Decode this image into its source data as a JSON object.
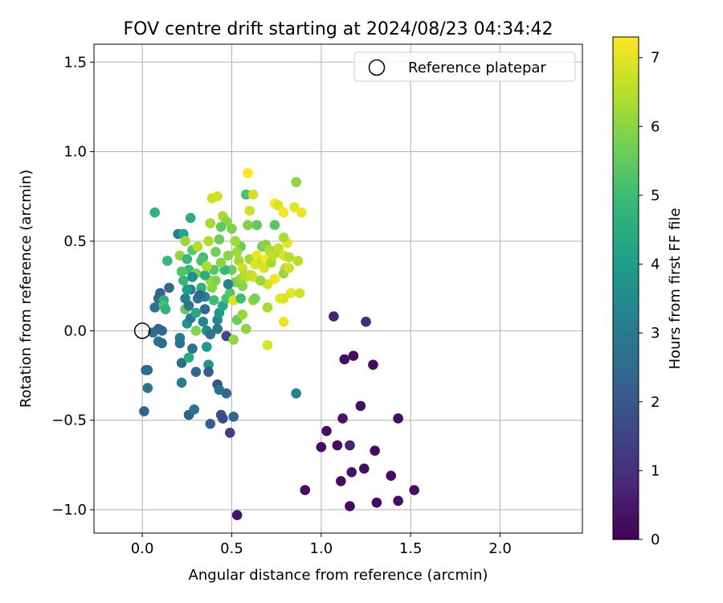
{
  "chart_data": {
    "type": "scatter",
    "title": "FOV centre drift starting at 2024/08/23 04:34:42",
    "xlabel": "Angular distance from reference (arcmin)",
    "ylabel": "Rotation from reference (arcmin)",
    "xlim": [
      -0.27,
      2.46
    ],
    "ylim": [
      -1.13,
      1.6
    ],
    "xticks": [
      "0.0",
      "0.5",
      "1.0",
      "1.5",
      "2.0"
    ],
    "xtick_values": [
      0,
      0.5,
      1.0,
      1.5,
      2.0
    ],
    "yticks": [
      "−1.0",
      "−0.5",
      "0.0",
      "0.5",
      "1.0",
      "1.5"
    ],
    "ytick_values": [
      -1.0,
      -0.5,
      0.0,
      0.5,
      1.0,
      1.5
    ],
    "grid": true,
    "legend": {
      "placement": "top-right",
      "entries": [
        "Reference platepar"
      ]
    },
    "reference_point": {
      "x": 0.0,
      "y": 0.0
    },
    "colorbar": {
      "label": "Hours from first FF file",
      "min": 0,
      "max": 7.3,
      "ticks": [
        "0",
        "1",
        "2",
        "3",
        "4",
        "5",
        "6",
        "7"
      ],
      "tick_values": [
        0,
        1,
        2,
        3,
        4,
        5,
        6,
        7
      ],
      "colormap": [
        "#440154",
        "#482878",
        "#3e4989",
        "#31688e",
        "#26828e",
        "#1f9e89",
        "#35b779",
        "#6ece58",
        "#b5de2b",
        "#fde725"
      ]
    },
    "series": [
      {
        "values_format": "[x, y, hours]",
        "points": [
          [
            0.53,
            -1.03,
            0.4
          ],
          [
            0.91,
            -0.89,
            0.3
          ],
          [
            1.16,
            -0.98,
            0.2
          ],
          [
            1.11,
            -0.84,
            0.3
          ],
          [
            1.17,
            -0.79,
            0.4
          ],
          [
            1.24,
            -0.77,
            0.3
          ],
          [
            1.31,
            -0.96,
            0.2
          ],
          [
            1.43,
            -0.95,
            0.3
          ],
          [
            1.52,
            -0.89,
            0.3
          ],
          [
            1.39,
            -0.81,
            0.2
          ],
          [
            1.0,
            -0.65,
            0.2
          ],
          [
            1.03,
            -0.56,
            0.3
          ],
          [
            1.09,
            -0.64,
            0.2
          ],
          [
            1.16,
            -0.64,
            0.7
          ],
          [
            1.12,
            -0.49,
            0.4
          ],
          [
            1.22,
            -0.42,
            0.3
          ],
          [
            1.3,
            -0.67,
            0.2
          ],
          [
            1.43,
            -0.49,
            0.2
          ],
          [
            1.13,
            -0.16,
            0.2
          ],
          [
            1.18,
            -0.14,
            0.3
          ],
          [
            1.29,
            -0.19,
            0.2
          ],
          [
            1.07,
            0.08,
            0.7
          ],
          [
            1.25,
            0.05,
            0.9
          ],
          [
            0.86,
            -0.35,
            3.2
          ],
          [
            0.01,
            -0.45,
            2.3
          ],
          [
            0.03,
            -0.32,
            2.8
          ],
          [
            0.02,
            -0.22,
            2.5
          ],
          [
            0.03,
            -0.22,
            2.6
          ],
          [
            0.06,
            -0.01,
            2.7
          ],
          [
            0.09,
            0.01,
            2.5
          ],
          [
            0.11,
            0.0,
            2.4
          ],
          [
            0.09,
            -0.06,
            2.8
          ],
          [
            0.11,
            -0.07,
            2.6
          ],
          [
            0.07,
            0.13,
            2.7
          ],
          [
            0.09,
            0.18,
            2.5
          ],
          [
            0.1,
            0.21,
            2.3
          ],
          [
            0.15,
            0.24,
            2.4
          ],
          [
            0.12,
            0.17,
            4.6
          ],
          [
            0.12,
            0.14,
            5.2
          ],
          [
            0.13,
            0.12,
            4.8
          ],
          [
            0.14,
            0.39,
            4.9
          ],
          [
            0.07,
            0.66,
            4.7
          ],
          [
            0.2,
            0.54,
            3.1
          ],
          [
            0.23,
            0.54,
            4.3
          ],
          [
            0.27,
            0.63,
            4.5
          ],
          [
            0.21,
            -0.04,
            3.1
          ],
          [
            0.21,
            -0.07,
            2.7
          ],
          [
            0.22,
            -0.18,
            2.6
          ],
          [
            0.22,
            -0.29,
            3.1
          ],
          [
            0.26,
            -0.47,
            2.2
          ],
          [
            0.29,
            -0.44,
            2.8
          ],
          [
            0.3,
            -0.23,
            2.4
          ],
          [
            0.28,
            -0.1,
            2.7
          ],
          [
            0.26,
            -0.15,
            4.5
          ],
          [
            0.25,
            0.04,
            3.8
          ],
          [
            0.3,
            0.0,
            5.9
          ],
          [
            0.24,
            0.12,
            5.5
          ],
          [
            0.24,
            0.18,
            3.1
          ],
          [
            0.27,
            0.23,
            3.1
          ],
          [
            0.31,
            0.18,
            2.9
          ],
          [
            0.26,
            0.34,
            4.9
          ],
          [
            0.28,
            0.45,
            5.4
          ],
          [
            0.34,
            0.41,
            5.0
          ],
          [
            0.3,
            0.32,
            5.8
          ],
          [
            0.33,
            0.24,
            4.6
          ],
          [
            0.35,
            0.19,
            3.2
          ],
          [
            0.35,
            0.12,
            2.5
          ],
          [
            0.36,
            0.0,
            3.6
          ],
          [
            0.38,
            -0.02,
            2.8
          ],
          [
            0.36,
            -0.09,
            4.0
          ],
          [
            0.37,
            -0.19,
            3.8
          ],
          [
            0.37,
            -0.23,
            2.1
          ],
          [
            0.38,
            -0.52,
            2.2
          ],
          [
            0.42,
            -0.3,
            1.9
          ],
          [
            0.43,
            -0.33,
            2.8
          ],
          [
            0.44,
            -0.47,
            1.8
          ],
          [
            0.45,
            -0.49,
            1.6
          ],
          [
            0.47,
            -0.35,
            2.6
          ],
          [
            0.49,
            -0.57,
            1.4
          ],
          [
            0.51,
            -0.48,
            2.4
          ],
          [
            0.47,
            -0.03,
            1.6
          ],
          [
            0.42,
            0.01,
            2.9
          ],
          [
            0.42,
            0.06,
            3.4
          ],
          [
            0.43,
            0.1,
            3.9
          ],
          [
            0.45,
            0.14,
            4.3
          ],
          [
            0.47,
            0.18,
            5.1
          ],
          [
            0.39,
            0.24,
            6.0
          ],
          [
            0.38,
            0.28,
            6.2
          ],
          [
            0.41,
            0.28,
            5.9
          ],
          [
            0.4,
            0.17,
            5.0
          ],
          [
            0.4,
            0.34,
            5.4
          ],
          [
            0.41,
            0.44,
            5.7
          ],
          [
            0.43,
            0.51,
            5.6
          ],
          [
            0.38,
            0.6,
            6.3
          ],
          [
            0.39,
            0.74,
            6.7
          ],
          [
            0.42,
            0.75,
            6.8
          ],
          [
            0.45,
            0.64,
            6.4
          ],
          [
            0.47,
            0.61,
            6.0
          ],
          [
            0.44,
            0.58,
            5.5
          ],
          [
            0.48,
            0.42,
            6.0
          ],
          [
            0.5,
            0.34,
            5.6
          ],
          [
            0.52,
            0.27,
            5.8
          ],
          [
            0.49,
            0.21,
            5.3
          ],
          [
            0.51,
            0.17,
            6.9
          ],
          [
            0.53,
            0.06,
            5.6
          ],
          [
            0.51,
            -0.05,
            6.1
          ],
          [
            0.56,
            0.09,
            6.2
          ],
          [
            0.58,
            0.01,
            6.0
          ],
          [
            0.55,
            0.18,
            5.0
          ],
          [
            0.56,
            0.25,
            6.0
          ],
          [
            0.58,
            0.3,
            6.7
          ],
          [
            0.6,
            0.31,
            6.4
          ],
          [
            0.62,
            0.3,
            7.0
          ],
          [
            0.62,
            0.17,
            6.2
          ],
          [
            0.6,
            0.4,
            6.3
          ],
          [
            0.63,
            0.37,
            6.9
          ],
          [
            0.64,
            0.42,
            7.1
          ],
          [
            0.67,
            0.47,
            5.7
          ],
          [
            0.69,
            0.48,
            6.0
          ],
          [
            0.67,
            0.39,
            6.6
          ],
          [
            0.69,
            0.4,
            7.2
          ],
          [
            0.71,
            0.45,
            6.4
          ],
          [
            0.7,
            0.26,
            6.8
          ],
          [
            0.7,
            0.13,
            6.3
          ],
          [
            0.7,
            -0.08,
            6.9
          ],
          [
            0.74,
            0.29,
            7.2
          ],
          [
            0.77,
            0.18,
            7.1
          ],
          [
            0.79,
            0.18,
            6.9
          ],
          [
            0.74,
            0.43,
            6.0
          ],
          [
            0.76,
            0.46,
            6.6
          ],
          [
            0.79,
            0.42,
            6.9
          ],
          [
            0.81,
            0.49,
            7.0
          ],
          [
            0.79,
            0.52,
            6.4
          ],
          [
            0.82,
            0.41,
            6.5
          ],
          [
            0.8,
            0.35,
            6.6
          ],
          [
            0.79,
            0.32,
            6.2
          ],
          [
            0.82,
            0.35,
            6.8
          ],
          [
            0.79,
            0.05,
            7.1
          ],
          [
            0.83,
            0.21,
            7.0
          ],
          [
            0.85,
            0.69,
            7.0
          ],
          [
            0.89,
            0.66,
            7.1
          ],
          [
            0.87,
            0.39,
            6.5
          ],
          [
            0.88,
            0.21,
            6.8
          ],
          [
            0.86,
            0.83,
            6.1
          ],
          [
            0.59,
            0.88,
            7.3
          ],
          [
            0.58,
            0.76,
            5.2
          ],
          [
            0.62,
            0.76,
            6.8
          ],
          [
            0.6,
            0.67,
            6.8
          ],
          [
            0.64,
            0.59,
            5.5
          ],
          [
            0.59,
            0.59,
            5.9
          ],
          [
            0.74,
            0.59,
            5.4
          ],
          [
            0.74,
            0.71,
            7.3
          ],
          [
            0.76,
            0.7,
            6.9
          ],
          [
            0.79,
            0.66,
            7.2
          ],
          [
            0.52,
            0.5,
            5.3
          ],
          [
            0.55,
            0.47,
            5.6
          ],
          [
            0.53,
            0.44,
            6.2
          ],
          [
            0.33,
            0.39,
            5.2
          ],
          [
            0.31,
            0.47,
            6.5
          ],
          [
            0.23,
            0.28,
            4.8
          ],
          [
            0.22,
            0.33,
            5.3
          ],
          [
            0.21,
            0.42,
            6.1
          ],
          [
            0.27,
            0.07,
            3.0
          ],
          [
            0.3,
            0.1,
            4.4
          ],
          [
            0.32,
            0.2,
            2.5
          ],
          [
            0.34,
            0.05,
            3.4
          ],
          [
            0.35,
            0.31,
            4.5
          ],
          [
            0.36,
            0.36,
            6.4
          ],
          [
            0.37,
            0.5,
            6.4
          ],
          [
            0.24,
            0.5,
            6.2
          ],
          [
            0.25,
            0.4,
            4.9
          ],
          [
            0.28,
            0.3,
            3.6
          ],
          [
            0.25,
            0.23,
            4.1
          ],
          [
            0.26,
            0.14,
            2.9
          ],
          [
            0.48,
            0.26,
            3.3
          ],
          [
            0.46,
            0.34,
            4.9
          ],
          [
            0.44,
            0.38,
            6.0
          ],
          [
            0.5,
            0.57,
            5.8
          ],
          [
            0.52,
            0.5,
            6.3
          ],
          [
            0.54,
            0.39,
            6.3
          ],
          [
            0.56,
            0.35,
            6.8
          ],
          [
            0.55,
            0.29,
            6.1
          ],
          [
            0.57,
            0.31,
            6.5
          ],
          [
            0.61,
            0.31,
            6.7
          ],
          [
            0.63,
            0.18,
            5.8
          ],
          [
            0.66,
            0.28,
            6.2
          ],
          [
            0.68,
            0.35,
            6.9
          ],
          [
            0.72,
            0.38,
            6.3
          ],
          [
            0.73,
            0.42,
            6.6
          ]
        ]
      }
    ]
  }
}
